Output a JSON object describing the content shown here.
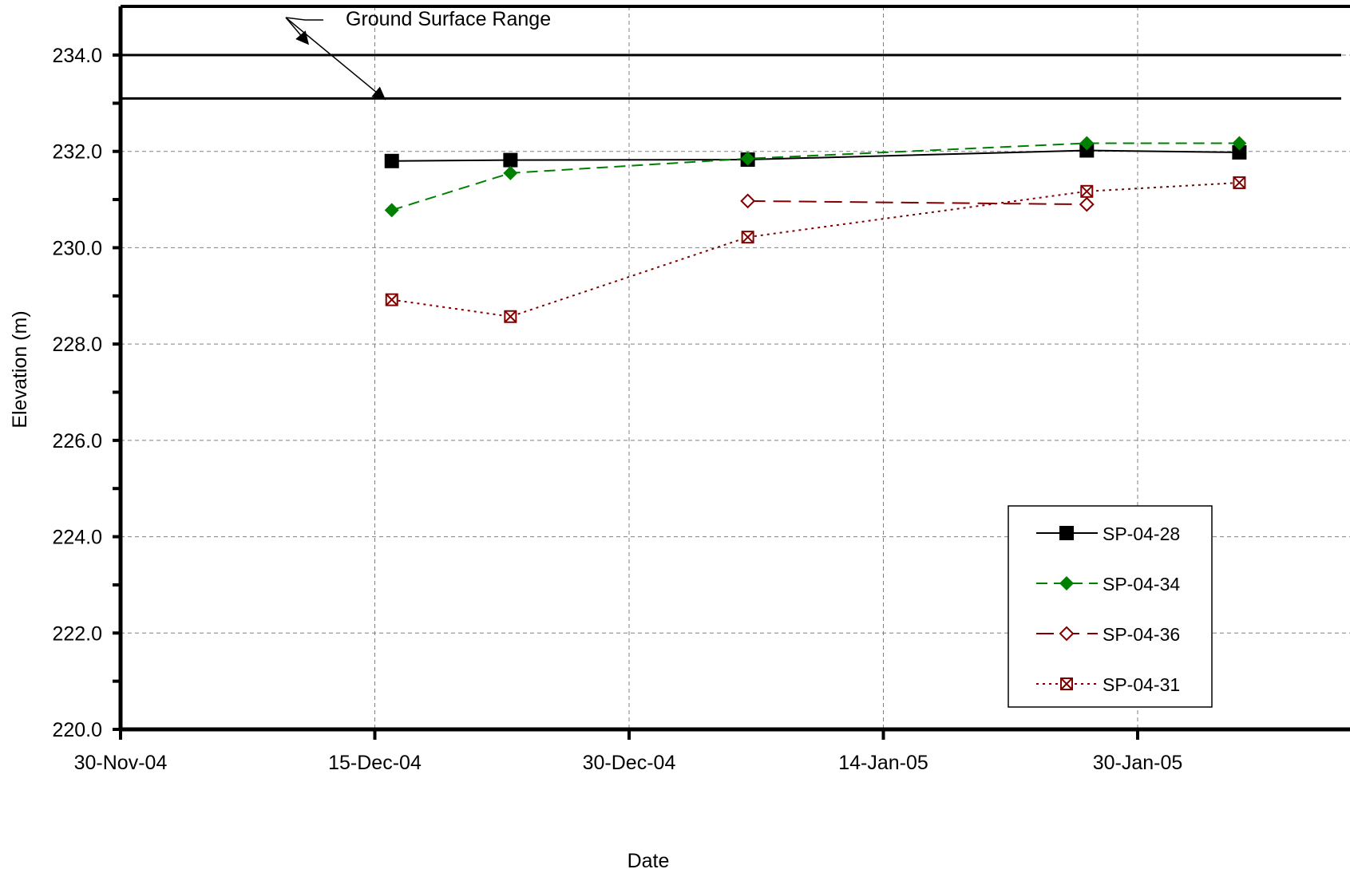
{
  "chart_data": {
    "type": "line",
    "xlabel": "Date",
    "ylabel": "Elevation (m)",
    "ylim": [
      220.0,
      235.0
    ],
    "yticks": [
      220.0,
      222.0,
      224.0,
      226.0,
      228.0,
      230.0,
      232.0,
      234.0
    ],
    "ytick_labels": [
      "220.0",
      "222.0",
      "224.0",
      "226.0",
      "228.0",
      "230.0",
      "232.0",
      "234.0"
    ],
    "xlim": [
      "2004-11-30",
      "2005-02-06"
    ],
    "xticks": [
      "2004-11-30",
      "2004-12-15",
      "2004-12-30",
      "2005-01-14",
      "2005-01-29"
    ],
    "xtick_labels": [
      "30-Nov-04",
      "15-Dec-04",
      "30-Dec-04",
      "14-Jan-05",
      "30-Jan-05"
    ],
    "grid": true,
    "legend_position": "bottom-right",
    "annotation": {
      "text": "Ground Surface Range",
      "lines": [
        234.0,
        233.1
      ]
    },
    "series": [
      {
        "name": "SP-04-28",
        "color": "#000000",
        "line_style": "solid",
        "marker": "filled-square",
        "points": [
          {
            "x": "2004-12-16",
            "y": 231.8
          },
          {
            "x": "2004-12-23",
            "y": 231.82
          },
          {
            "x": "2005-01-06",
            "y": 231.83
          },
          {
            "x": "2005-01-26",
            "y": 232.02
          },
          {
            "x": "2005-02-04",
            "y": 231.98
          }
        ]
      },
      {
        "name": "SP-04-34",
        "color": "#008000",
        "line_style": "dashed",
        "marker": "filled-diamond",
        "points": [
          {
            "x": "2004-12-16",
            "y": 230.78
          },
          {
            "x": "2004-12-23",
            "y": 231.55
          },
          {
            "x": "2005-01-06",
            "y": 231.85
          },
          {
            "x": "2005-01-26",
            "y": 232.17
          },
          {
            "x": "2005-02-04",
            "y": 232.17
          }
        ]
      },
      {
        "name": "SP-04-36",
        "color": "#800000",
        "line_style": "long-dash",
        "marker": "open-diamond",
        "points": [
          {
            "x": "2005-01-06",
            "y": 230.97
          },
          {
            "x": "2005-01-26",
            "y": 230.9
          }
        ]
      },
      {
        "name": "SP-04-31",
        "color": "#800000",
        "line_style": "dotted",
        "marker": "crossed-square",
        "points": [
          {
            "x": "2004-12-16",
            "y": 228.92
          },
          {
            "x": "2004-12-23",
            "y": 228.57
          },
          {
            "x": "2005-01-06",
            "y": 230.22
          },
          {
            "x": "2005-01-26",
            "y": 231.17
          },
          {
            "x": "2005-02-04",
            "y": 231.35
          }
        ]
      }
    ]
  }
}
